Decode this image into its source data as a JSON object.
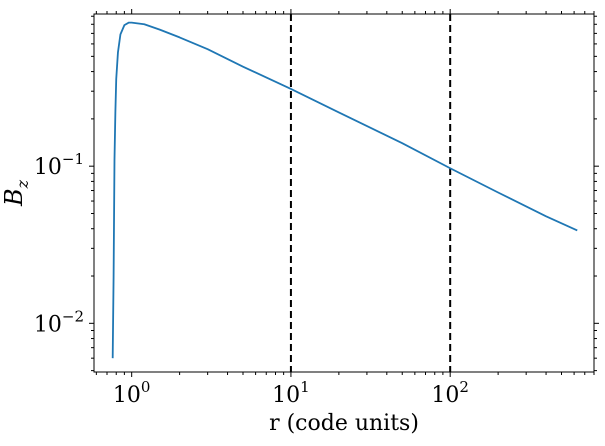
{
  "chart_data": {
    "type": "line",
    "title": "",
    "xlabel": "r (code units)",
    "ylabel": "B_z",
    "xscale": "log",
    "yscale": "log",
    "xlim": [
      0.58,
      800
    ],
    "ylim": [
      0.0049,
      0.93
    ],
    "grid": false,
    "legend": "none",
    "x_ticks": [
      {
        "value": 1,
        "base": "10",
        "exp": "0"
      },
      {
        "value": 10,
        "base": "10",
        "exp": "1"
      },
      {
        "value": 100,
        "base": "10",
        "exp": "2"
      }
    ],
    "y_ticks": [
      {
        "value": 0.01,
        "base": "10",
        "exp": "−2"
      },
      {
        "value": 0.1,
        "base": "10",
        "exp": "−1"
      }
    ],
    "series": [
      {
        "color": "#1f77b4",
        "x": [
          0.76,
          0.77,
          0.78,
          0.79,
          0.8,
          0.82,
          0.85,
          0.9,
          0.96,
          1.0,
          1.2,
          1.5,
          2,
          3,
          5,
          10,
          20,
          50,
          100,
          200,
          400,
          628
        ],
        "y": [
          0.006,
          0.02,
          0.11,
          0.22,
          0.36,
          0.53,
          0.69,
          0.79,
          0.82,
          0.82,
          0.8,
          0.74,
          0.66,
          0.555,
          0.43,
          0.31,
          0.22,
          0.14,
          0.097,
          0.068,
          0.048,
          0.039
        ]
      }
    ],
    "vlines": [
      {
        "x": 10,
        "style": "dashed",
        "color": "#000000"
      },
      {
        "x": 100,
        "style": "dashed",
        "color": "#000000"
      }
    ]
  }
}
